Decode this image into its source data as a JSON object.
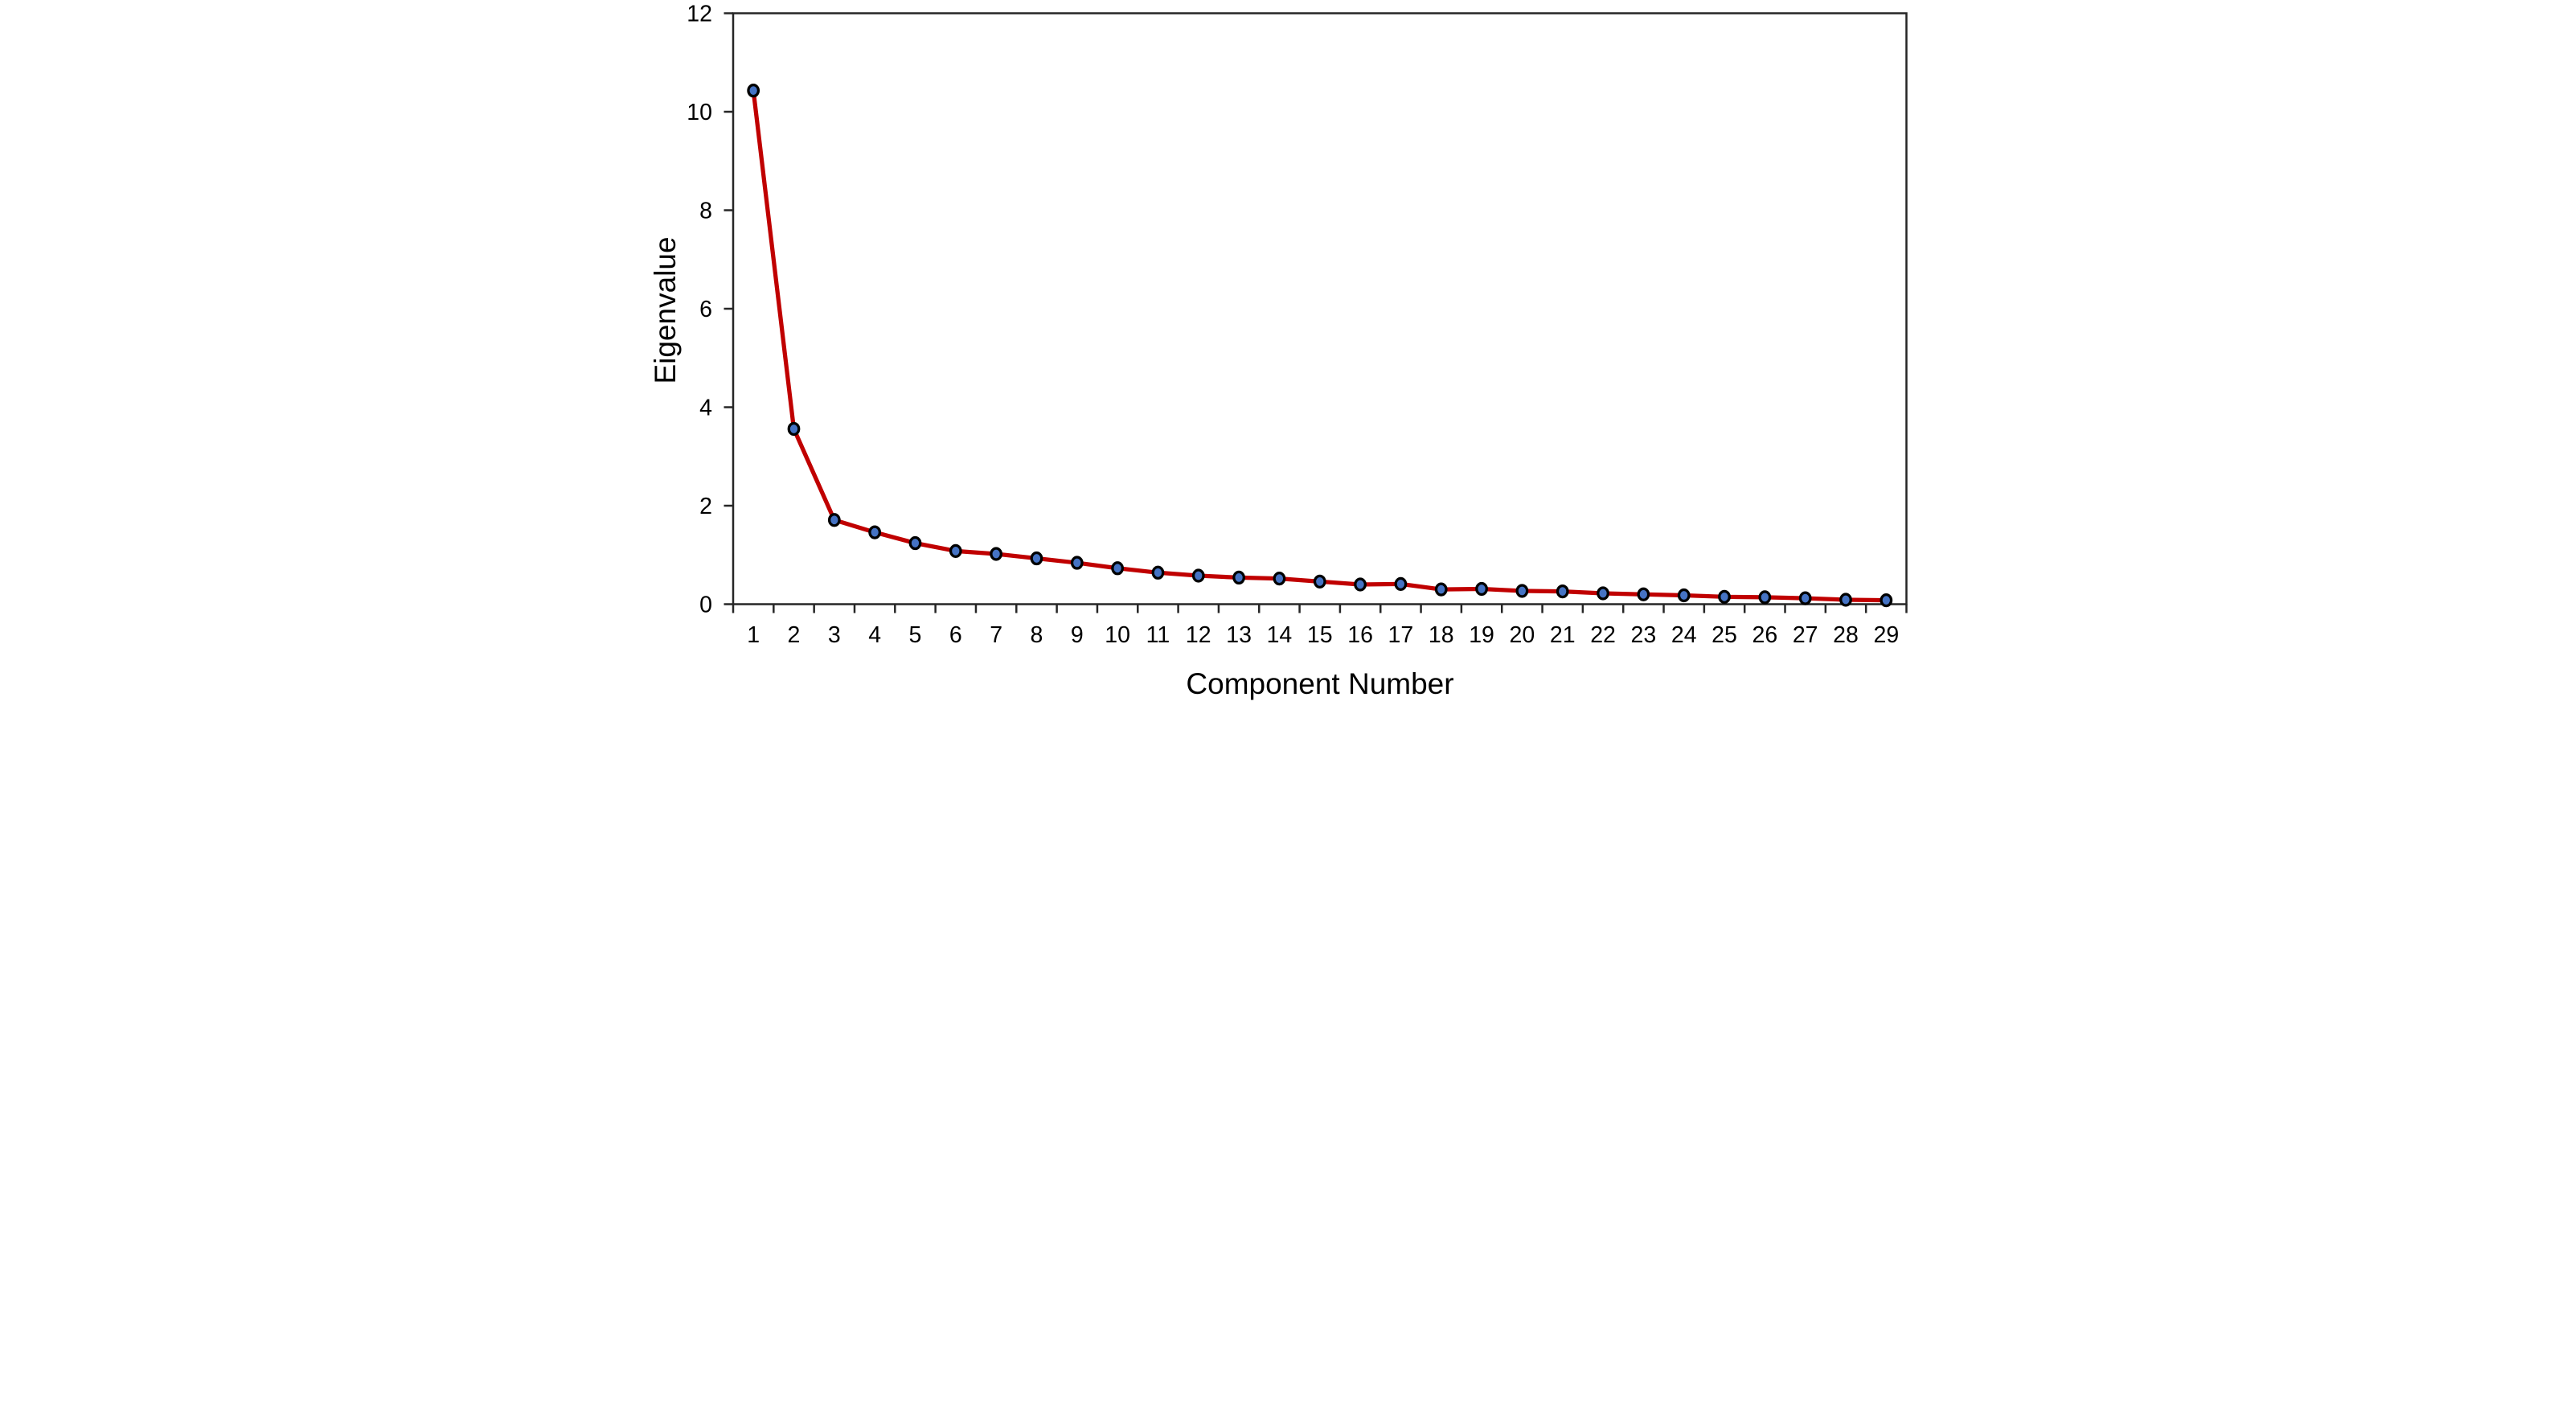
{
  "figure": {
    "background": "#ffffff"
  },
  "chart_data": {
    "type": "line",
    "title": "",
    "xlabel": "Component Number",
    "ylabel": "Eigenvalue",
    "categories": [
      1,
      2,
      3,
      4,
      5,
      6,
      7,
      8,
      9,
      10,
      11,
      12,
      13,
      14,
      15,
      16,
      17,
      18,
      19,
      20,
      21,
      22,
      23,
      24,
      25,
      26,
      27,
      28,
      29
    ],
    "series": [
      {
        "name": "Eigenvalue",
        "values": [
          10.43,
          3.56,
          1.71,
          1.46,
          1.24,
          1.08,
          1.02,
          0.93,
          0.84,
          0.73,
          0.64,
          0.58,
          0.54,
          0.52,
          0.46,
          0.4,
          0.41,
          0.3,
          0.31,
          0.27,
          0.26,
          0.22,
          0.2,
          0.18,
          0.15,
          0.14,
          0.12,
          0.09,
          0.08
        ]
      }
    ],
    "ylim": [
      0,
      12
    ],
    "y_ticks": [
      0,
      2,
      4,
      6,
      8,
      10,
      12
    ],
    "grid": false,
    "legend": "none",
    "line_color": "#C00000",
    "marker_fill": "#4573C4",
    "marker_stroke": "#000000",
    "axis_color": "#262626",
    "text_color": "#000000"
  }
}
